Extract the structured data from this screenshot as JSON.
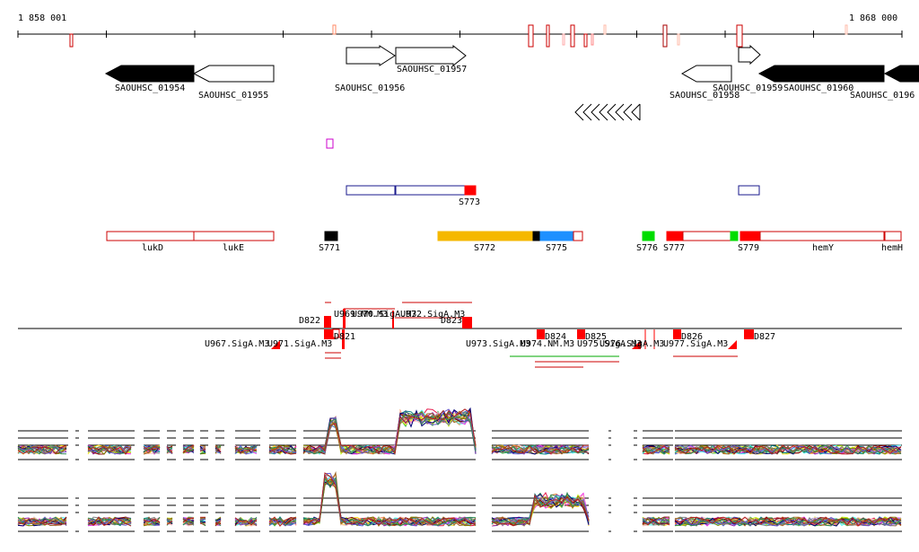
{
  "axis": {
    "start_label": "1 858 001",
    "end_label": "1 868 000"
  },
  "genes": [
    {
      "id": "SAOUHSC_01954",
      "strand": "-",
      "filled": true
    },
    {
      "id": "SAOUHSC_01955",
      "strand": "-",
      "filled": false
    },
    {
      "id": "SAOUHSC_01956",
      "strand": "+",
      "filled": false
    },
    {
      "id": "SAOUHSC_01957",
      "strand": "+",
      "filled": false
    },
    {
      "id": "SAOUHSC_01958",
      "strand": "-",
      "filled": false
    },
    {
      "id": "SAOUHSC_01959",
      "strand": "+",
      "filled": false
    },
    {
      "id": "SAOUHSC_01960",
      "strand": "-",
      "filled": true
    },
    {
      "id": "SAOUHSC_0196",
      "strand": "-",
      "filled": true
    }
  ],
  "features": [
    {
      "name": "lukD",
      "color": "#ffffff",
      "border": "#cc0000"
    },
    {
      "name": "lukE",
      "color": "#ffffff",
      "border": "#cc0000"
    },
    {
      "name": "S771",
      "color": "#000000"
    },
    {
      "name": "S772",
      "color": "#f5b800"
    },
    {
      "name": "S775",
      "color": "#1e90ff"
    },
    {
      "name": "S776",
      "color": "#00dd00"
    },
    {
      "name": "S777",
      "color": "#ff0000"
    },
    {
      "name": "S779",
      "color": "#ff0000"
    },
    {
      "name": "hemY",
      "color": "#ffffff",
      "border": "#cc0000"
    },
    {
      "name": "hemH",
      "color": "#ffffff",
      "border": "#cc0000"
    }
  ],
  "upper_track_label": "S773",
  "sites_above": [
    "D822",
    "U969.NM.M3",
    "U970.SigA.M3",
    "U972.SigA.M3",
    "D823"
  ],
  "sites_below": [
    "U967.SigA.M3",
    "U971.SigA.M3",
    "D821",
    "U973.SigA.M3",
    "U974.NM.M3",
    "D824",
    "D825",
    "U975.SigA.M3",
    "U976.SigA.M3",
    "D826",
    "U977.SigA.M3",
    "D827"
  ],
  "colors": {
    "gene_outline": "#000000",
    "feature_red": "#ff0000",
    "box_blue": "#1a1a8c",
    "purple_box": "#cc00cc"
  }
}
